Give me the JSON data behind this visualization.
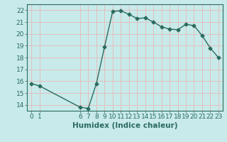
{
  "title": "",
  "xlabel": "Humidex (Indice chaleur)",
  "ylabel": "",
  "x": [
    0,
    1,
    6,
    7,
    8,
    9,
    10,
    11,
    12,
    13,
    14,
    15,
    16,
    17,
    18,
    19,
    20,
    21,
    22,
    23
  ],
  "y": [
    15.8,
    15.6,
    13.8,
    13.7,
    15.8,
    18.9,
    21.9,
    21.95,
    21.65,
    21.3,
    21.35,
    21.0,
    20.6,
    20.4,
    20.35,
    20.8,
    20.7,
    19.85,
    18.8,
    18.0
  ],
  "line_color": "#2a6b5e",
  "bg_color": "#c8eaea",
  "grid_color": "#b0d8d8",
  "ylim": [
    13.5,
    22.5
  ],
  "yticks": [
    14,
    15,
    16,
    17,
    18,
    19,
    20,
    21,
    22
  ],
  "xticks": [
    0,
    1,
    6,
    7,
    8,
    9,
    10,
    11,
    12,
    13,
    14,
    15,
    16,
    17,
    18,
    19,
    20,
    21,
    22,
    23
  ],
  "marker": "D",
  "markersize": 2.5,
  "linewidth": 1.0,
  "xlabel_fontsize": 7.5,
  "tick_fontsize": 6.5
}
